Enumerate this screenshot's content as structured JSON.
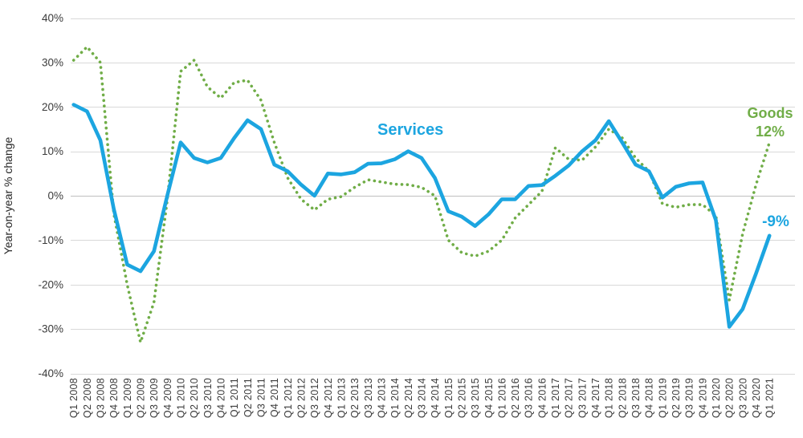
{
  "y_axis": {
    "title": "Year-on-year % change",
    "ticks": [
      {
        "label": "40%",
        "value": 40
      },
      {
        "label": "30%",
        "value": 30
      },
      {
        "label": "20%",
        "value": 20
      },
      {
        "label": "10%",
        "value": 10
      },
      {
        "label": "0%",
        "value": 0
      },
      {
        "label": "-10%",
        "value": -10
      },
      {
        "label": "-20%",
        "value": -20
      },
      {
        "label": "-30%",
        "value": -30
      },
      {
        "label": "-40%",
        "value": -40
      }
    ]
  },
  "annotations": {
    "services_label": "Services",
    "goods_label": "Goods",
    "goods_value_label": "12%",
    "services_value_label": "-9%"
  },
  "colors": {
    "services": "#1ca5e0",
    "goods": "#70ad47",
    "gridline": "#d9d9d9",
    "zero_line": "#bfbfbf",
    "axis_text": "#3b3b3b"
  },
  "chart_data": {
    "type": "line",
    "title": "",
    "xlabel": "",
    "ylabel": "Year-on-year % change",
    "ylim": [
      -40,
      40
    ],
    "yticks": [
      40,
      30,
      20,
      10,
      0,
      -10,
      -20,
      -30,
      -40
    ],
    "grid": true,
    "legend_position": "inline-annotations",
    "categories": [
      "Q1 2008",
      "Q2 2008",
      "Q3 2008",
      "Q4 2008",
      "Q1 2009",
      "Q2 2009",
      "Q3 2009",
      "Q4 2009",
      "Q1 2010",
      "Q2 2010",
      "Q3 2010",
      "Q4 2010",
      "Q1 2011",
      "Q2 2011",
      "Q3 2011",
      "Q4 2011",
      "Q1 2012",
      "Q2 2012",
      "Q3 2012",
      "Q4 2012",
      "Q1 2013",
      "Q2 2013",
      "Q3 2013",
      "Q4 2013",
      "Q1 2014",
      "Q2 2014",
      "Q3 2014",
      "Q4 2014",
      "Q1 2015",
      "Q2 2015",
      "Q3 2015",
      "Q4 2015",
      "Q1 2016",
      "Q2 2016",
      "Q3 2016",
      "Q4 2016",
      "Q1 2017",
      "Q2 2017",
      "Q3 2017",
      "Q4 2017",
      "Q1 2018",
      "Q2 2018",
      "Q3 2018",
      "Q4 2018",
      "Q1 2019",
      "Q2 2019",
      "Q3 2019",
      "Q4 2019",
      "Q1 2020",
      "Q2 2020",
      "Q3 2020",
      "Q4 2020",
      "Q1 2021"
    ],
    "series": [
      {
        "name": "Services",
        "style": "solid",
        "color": "#1ca5e0",
        "end_value_label": "-9%",
        "values": [
          20.5,
          19,
          12.5,
          -3,
          -15.5,
          -17,
          -12.5,
          0,
          12,
          8.5,
          7.5,
          8.5,
          13,
          17,
          15,
          7,
          5.5,
          2.5,
          0,
          5,
          4.8,
          5.3,
          7.2,
          7.3,
          8.2,
          10,
          8.5,
          4,
          -3.5,
          -4.7,
          -6.8,
          -4.2,
          -0.8,
          -0.8,
          2.2,
          2.4,
          4.5,
          6.8,
          10,
          12.5,
          16.8,
          12,
          7,
          5.5,
          -0.4,
          2,
          2.8,
          3,
          -5.5,
          -29.5,
          -25.5,
          -17.5,
          -9
        ]
      },
      {
        "name": "Goods",
        "style": "dotted",
        "color": "#70ad47",
        "end_value_label": "12%",
        "values": [
          30.5,
          33.5,
          30,
          -4,
          -20,
          -33,
          -24,
          -1,
          28,
          30.5,
          24.5,
          22,
          25.5,
          26,
          21.5,
          12,
          4,
          -0.8,
          -3.2,
          -0.8,
          -0.2,
          1.9,
          3.6,
          3.1,
          2.6,
          2.5,
          1.9,
          0,
          -10,
          -12.8,
          -13.6,
          -12.5,
          -10,
          -5,
          -2,
          1,
          10.8,
          8.2,
          8,
          11,
          15,
          13,
          8.5,
          5.5,
          -1.8,
          -2.6,
          -2,
          -2,
          -4.5,
          -23.5,
          -8.5,
          2.5,
          12
        ]
      }
    ]
  }
}
